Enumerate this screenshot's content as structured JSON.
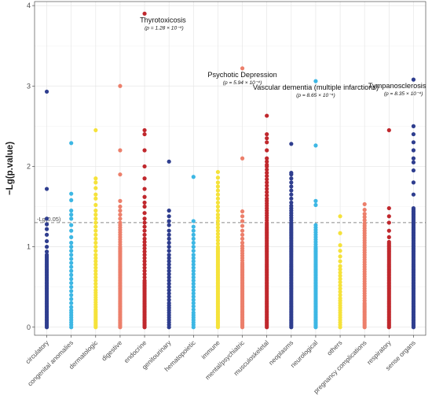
{
  "chart_data": {
    "type": "scatter",
    "ylabel": "−Lg(p.value)",
    "xlabel": "",
    "ylim": [
      -0.1,
      4.05
    ],
    "yticks": [
      "0",
      "1",
      "2",
      "3",
      "4"
    ],
    "grid": true,
    "reference_line": {
      "y": 1.301,
      "label": "-Lg(0.05)"
    },
    "categories": [
      {
        "name": "circulatory",
        "color": "#2f3e8f",
        "values": [
          0,
          0.02,
          0.04,
          0.06,
          0.08,
          0.1,
          0.12,
          0.14,
          0.16,
          0.18,
          0.2,
          0.22,
          0.24,
          0.26,
          0.28,
          0.3,
          0.32,
          0.34,
          0.36,
          0.38,
          0.4,
          0.42,
          0.44,
          0.46,
          0.48,
          0.5,
          0.52,
          0.54,
          0.56,
          0.58,
          0.6,
          0.62,
          0.64,
          0.66,
          0.68,
          0.7,
          0.72,
          0.74,
          0.76,
          0.78,
          0.8,
          0.82,
          0.84,
          0.86,
          0.88,
          0.9,
          0.94,
          1.0,
          1.07,
          1.15,
          1.22,
          1.28,
          1.35,
          1.72,
          2.93
        ]
      },
      {
        "name": "congenital anomalies",
        "color": "#3db7e4",
        "values": [
          0,
          0.03,
          0.06,
          0.09,
          0.12,
          0.15,
          0.18,
          0.21,
          0.25,
          0.3,
          0.35,
          0.4,
          0.45,
          0.5,
          0.55,
          0.6,
          0.65,
          0.7,
          0.75,
          0.8,
          0.85,
          0.9,
          0.95,
          1.0,
          1.05,
          1.12,
          1.2,
          1.27,
          1.35,
          1.4,
          1.45,
          1.58,
          1.66,
          2.29
        ]
      },
      {
        "name": "dermatologic",
        "color": "#f5e23a",
        "values": [
          0,
          0.02,
          0.04,
          0.06,
          0.08,
          0.1,
          0.12,
          0.14,
          0.16,
          0.18,
          0.2,
          0.22,
          0.25,
          0.28,
          0.31,
          0.34,
          0.37,
          0.4,
          0.43,
          0.46,
          0.5,
          0.54,
          0.58,
          0.62,
          0.66,
          0.7,
          0.74,
          0.78,
          0.82,
          0.86,
          0.9,
          0.95,
          1.0,
          1.05,
          1.1,
          1.15,
          1.2,
          1.25,
          1.3,
          1.35,
          1.4,
          1.45,
          1.52,
          1.6,
          1.65,
          1.73,
          1.8,
          1.85,
          2.45
        ]
      },
      {
        "name": "digestive",
        "color": "#ec7f6b",
        "values": [
          0,
          0.02,
          0.04,
          0.06,
          0.08,
          0.1,
          0.12,
          0.14,
          0.16,
          0.18,
          0.2,
          0.22,
          0.24,
          0.26,
          0.28,
          0.3,
          0.32,
          0.34,
          0.36,
          0.38,
          0.4,
          0.42,
          0.44,
          0.46,
          0.48,
          0.5,
          0.52,
          0.54,
          0.56,
          0.58,
          0.6,
          0.62,
          0.64,
          0.66,
          0.68,
          0.7,
          0.72,
          0.74,
          0.76,
          0.78,
          0.8,
          0.82,
          0.84,
          0.86,
          0.88,
          0.9,
          0.92,
          0.94,
          0.96,
          0.98,
          1.0,
          1.03,
          1.06,
          1.09,
          1.12,
          1.15,
          1.18,
          1.21,
          1.24,
          1.27,
          1.3,
          1.35,
          1.4,
          1.45,
          1.5,
          1.57,
          1.9,
          2.2,
          3.0
        ]
      },
      {
        "name": "endocrine",
        "color": "#c0282d",
        "values": [
          0,
          0.02,
          0.04,
          0.06,
          0.08,
          0.1,
          0.12,
          0.14,
          0.16,
          0.18,
          0.2,
          0.22,
          0.24,
          0.26,
          0.28,
          0.3,
          0.32,
          0.34,
          0.36,
          0.38,
          0.4,
          0.42,
          0.44,
          0.46,
          0.48,
          0.5,
          0.52,
          0.54,
          0.56,
          0.58,
          0.62,
          0.66,
          0.7,
          0.74,
          0.78,
          0.82,
          0.86,
          0.9,
          0.94,
          0.98,
          1.02,
          1.06,
          1.1,
          1.15,
          1.2,
          1.25,
          1.3,
          1.35,
          1.42,
          1.5,
          1.55,
          1.62,
          1.72,
          1.85,
          2.0,
          2.2,
          2.4,
          2.45,
          3.9
        ]
      },
      {
        "name": "genitourinary",
        "color": "#2f3e8f",
        "values": [
          0,
          0.03,
          0.06,
          0.09,
          0.12,
          0.15,
          0.18,
          0.21,
          0.24,
          0.27,
          0.3,
          0.34,
          0.38,
          0.42,
          0.46,
          0.5,
          0.54,
          0.58,
          0.62,
          0.66,
          0.7,
          0.74,
          0.78,
          0.82,
          0.86,
          0.9,
          0.95,
          1.0,
          1.05,
          1.1,
          1.15,
          1.2,
          1.27,
          1.32,
          1.38,
          1.45,
          2.06
        ]
      },
      {
        "name": "hematopoietic",
        "color": "#3db7e4",
        "values": [
          0,
          0.03,
          0.06,
          0.09,
          0.12,
          0.15,
          0.18,
          0.22,
          0.26,
          0.3,
          0.34,
          0.38,
          0.42,
          0.46,
          0.5,
          0.54,
          0.58,
          0.62,
          0.66,
          0.7,
          0.74,
          0.78,
          0.82,
          0.86,
          0.9,
          0.95,
          1.0,
          1.05,
          1.1,
          1.15,
          1.2,
          1.25,
          1.32,
          1.87
        ]
      },
      {
        "name": "immune",
        "color": "#f5e23a",
        "values": [
          0,
          0.02,
          0.04,
          0.06,
          0.08,
          0.1,
          0.12,
          0.14,
          0.16,
          0.18,
          0.2,
          0.22,
          0.24,
          0.26,
          0.28,
          0.3,
          0.32,
          0.34,
          0.36,
          0.38,
          0.4,
          0.42,
          0.44,
          0.46,
          0.48,
          0.5,
          0.52,
          0.54,
          0.56,
          0.58,
          0.6,
          0.62,
          0.64,
          0.66,
          0.68,
          0.7,
          0.72,
          0.74,
          0.76,
          0.78,
          0.8,
          0.82,
          0.84,
          0.86,
          0.88,
          0.9,
          0.92,
          0.94,
          0.96,
          0.98,
          1.0,
          1.04,
          1.08,
          1.12,
          1.16,
          1.2,
          1.24,
          1.28,
          1.32,
          1.36,
          1.4,
          1.45,
          1.5,
          1.55,
          1.6,
          1.65,
          1.7,
          1.75,
          1.8,
          1.86,
          1.93
        ]
      },
      {
        "name": "mental/psychiatric",
        "color": "#ec7f6b",
        "values": [
          0,
          0.02,
          0.04,
          0.06,
          0.08,
          0.1,
          0.12,
          0.14,
          0.16,
          0.18,
          0.2,
          0.22,
          0.24,
          0.26,
          0.28,
          0.3,
          0.32,
          0.34,
          0.36,
          0.38,
          0.4,
          0.42,
          0.44,
          0.46,
          0.48,
          0.5,
          0.52,
          0.54,
          0.56,
          0.58,
          0.6,
          0.62,
          0.64,
          0.66,
          0.68,
          0.7,
          0.72,
          0.74,
          0.76,
          0.78,
          0.8,
          0.83,
          0.86,
          0.89,
          0.92,
          0.95,
          0.98,
          1.01,
          1.05,
          1.1,
          1.15,
          1.2,
          1.26,
          1.32,
          1.38,
          1.44,
          2.1,
          3.22
        ]
      },
      {
        "name": "musculoskeletal",
        "color": "#c0282d",
        "values": [
          0,
          0.02,
          0.04,
          0.06,
          0.08,
          0.1,
          0.12,
          0.14,
          0.16,
          0.18,
          0.2,
          0.22,
          0.24,
          0.26,
          0.28,
          0.3,
          0.32,
          0.34,
          0.36,
          0.38,
          0.4,
          0.42,
          0.44,
          0.46,
          0.48,
          0.5,
          0.52,
          0.54,
          0.56,
          0.58,
          0.6,
          0.62,
          0.64,
          0.66,
          0.68,
          0.7,
          0.72,
          0.74,
          0.76,
          0.78,
          0.8,
          0.82,
          0.84,
          0.86,
          0.88,
          0.9,
          0.92,
          0.94,
          0.96,
          0.98,
          1.0,
          1.02,
          1.04,
          1.06,
          1.08,
          1.1,
          1.12,
          1.14,
          1.16,
          1.18,
          1.2,
          1.22,
          1.24,
          1.26,
          1.28,
          1.3,
          1.33,
          1.36,
          1.39,
          1.42,
          1.45,
          1.48,
          1.51,
          1.54,
          1.57,
          1.6,
          1.64,
          1.68,
          1.72,
          1.76,
          1.8,
          1.84,
          1.88,
          1.92,
          1.96,
          2.0,
          2.02,
          2.06,
          2.1,
          2.2,
          2.3,
          2.35,
          2.4,
          2.63
        ]
      },
      {
        "name": "neoplasms",
        "color": "#2f3e8f",
        "values": [
          0,
          0.02,
          0.04,
          0.06,
          0.08,
          0.1,
          0.12,
          0.14,
          0.16,
          0.18,
          0.2,
          0.22,
          0.24,
          0.26,
          0.28,
          0.3,
          0.32,
          0.34,
          0.36,
          0.38,
          0.4,
          0.42,
          0.44,
          0.46,
          0.48,
          0.5,
          0.52,
          0.54,
          0.56,
          0.58,
          0.6,
          0.62,
          0.64,
          0.66,
          0.68,
          0.7,
          0.72,
          0.74,
          0.76,
          0.78,
          0.8,
          0.82,
          0.84,
          0.86,
          0.88,
          0.9,
          0.92,
          0.94,
          0.96,
          0.98,
          1.0,
          1.02,
          1.04,
          1.06,
          1.08,
          1.1,
          1.12,
          1.14,
          1.16,
          1.18,
          1.2,
          1.22,
          1.24,
          1.26,
          1.28,
          1.3,
          1.33,
          1.36,
          1.39,
          1.42,
          1.45,
          1.48,
          1.51,
          1.55,
          1.6,
          1.65,
          1.7,
          1.75,
          1.8,
          1.85,
          1.9,
          1.92,
          2.28
        ]
      },
      {
        "name": "neurological",
        "color": "#3db7e4",
        "values": [
          0,
          0.02,
          0.04,
          0.06,
          0.08,
          0.1,
          0.12,
          0.14,
          0.16,
          0.18,
          0.2,
          0.22,
          0.24,
          0.26,
          0.28,
          0.3,
          0.32,
          0.34,
          0.36,
          0.38,
          0.4,
          0.42,
          0.44,
          0.46,
          0.48,
          0.5,
          0.52,
          0.54,
          0.56,
          0.58,
          0.6,
          0.62,
          0.64,
          0.66,
          0.68,
          0.7,
          0.72,
          0.74,
          0.76,
          0.78,
          0.8,
          0.82,
          0.84,
          0.86,
          0.88,
          0.9,
          0.92,
          0.94,
          0.96,
          0.98,
          1.0,
          1.03,
          1.06,
          1.09,
          1.12,
          1.15,
          1.18,
          1.21,
          1.24,
          1.27,
          1.52,
          1.57,
          2.26,
          3.06
        ]
      },
      {
        "name": "others",
        "color": "#f5e23a",
        "values": [
          0,
          0.03,
          0.06,
          0.09,
          0.12,
          0.15,
          0.18,
          0.21,
          0.24,
          0.27,
          0.3,
          0.33,
          0.36,
          0.4,
          0.44,
          0.48,
          0.52,
          0.56,
          0.6,
          0.64,
          0.68,
          0.72,
          0.76,
          0.82,
          0.88,
          0.95,
          1.02,
          1.17,
          1.38
        ]
      },
      {
        "name": "pregnancy complications",
        "color": "#ec7f6b",
        "values": [
          0,
          0.02,
          0.04,
          0.06,
          0.08,
          0.1,
          0.12,
          0.14,
          0.16,
          0.18,
          0.2,
          0.22,
          0.24,
          0.26,
          0.28,
          0.3,
          0.33,
          0.36,
          0.39,
          0.42,
          0.45,
          0.48,
          0.51,
          0.54,
          0.57,
          0.6,
          0.63,
          0.66,
          0.69,
          0.72,
          0.75,
          0.78,
          0.81,
          0.84,
          0.87,
          0.9,
          0.93,
          0.96,
          0.99,
          1.02,
          1.05,
          1.08,
          1.11,
          1.14,
          1.17,
          1.2,
          1.23,
          1.26,
          1.29,
          1.33,
          1.37,
          1.41,
          1.46,
          1.53
        ]
      },
      {
        "name": "respiratory",
        "color": "#c0282d",
        "values": [
          0,
          0.02,
          0.04,
          0.06,
          0.08,
          0.1,
          0.12,
          0.14,
          0.16,
          0.18,
          0.2,
          0.22,
          0.24,
          0.26,
          0.28,
          0.3,
          0.32,
          0.34,
          0.36,
          0.38,
          0.4,
          0.42,
          0.44,
          0.46,
          0.48,
          0.5,
          0.52,
          0.54,
          0.56,
          0.58,
          0.6,
          0.62,
          0.64,
          0.66,
          0.68,
          0.7,
          0.72,
          0.74,
          0.76,
          0.78,
          0.8,
          0.82,
          0.84,
          0.86,
          0.88,
          0.9,
          0.92,
          0.94,
          0.96,
          0.98,
          1.0,
          1.02,
          1.04,
          1.06,
          1.12,
          1.2,
          1.3,
          1.38,
          1.48,
          2.45
        ]
      },
      {
        "name": "sense organs",
        "color": "#2f3e8f",
        "values": [
          0,
          0.02,
          0.04,
          0.06,
          0.08,
          0.1,
          0.12,
          0.14,
          0.16,
          0.18,
          0.2,
          0.22,
          0.24,
          0.26,
          0.28,
          0.3,
          0.32,
          0.34,
          0.36,
          0.38,
          0.4,
          0.42,
          0.44,
          0.46,
          0.48,
          0.5,
          0.52,
          0.54,
          0.56,
          0.58,
          0.6,
          0.62,
          0.64,
          0.66,
          0.68,
          0.7,
          0.72,
          0.74,
          0.76,
          0.78,
          0.8,
          0.82,
          0.84,
          0.86,
          0.88,
          0.9,
          0.92,
          0.94,
          0.96,
          0.98,
          1.0,
          1.02,
          1.04,
          1.06,
          1.08,
          1.1,
          1.12,
          1.14,
          1.16,
          1.18,
          1.2,
          1.22,
          1.24,
          1.26,
          1.28,
          1.3,
          1.32,
          1.34,
          1.36,
          1.38,
          1.4,
          1.42,
          1.44,
          1.46,
          1.48,
          1.65,
          1.8,
          1.95,
          2.05,
          2.1,
          2.2,
          2.3,
          2.4,
          2.5,
          3.08
        ]
      }
    ],
    "annotations": [
      {
        "category": "endocrine",
        "y": 3.9,
        "label": "Thyrotoxicosis",
        "p": "(p = 1.28 × 10⁻⁴)",
        "anchor": "start"
      },
      {
        "category": "mental/psychiatric",
        "y": 3.22,
        "label": "Psychotic Depression",
        "p": "(p = 5.94 × 10⁻⁴)",
        "anchor": "middle"
      },
      {
        "category": "neurological",
        "y": 3.06,
        "label": "Vascular dementia (multiple infarctions)",
        "p": "(p = 8.65 × 10⁻⁴)",
        "anchor": "middle"
      },
      {
        "category": "sense organs",
        "y": 3.08,
        "label": "Tympanosclerosis",
        "p": "(p = 8.35 × 10⁻⁴)",
        "anchor": "end"
      }
    ]
  }
}
